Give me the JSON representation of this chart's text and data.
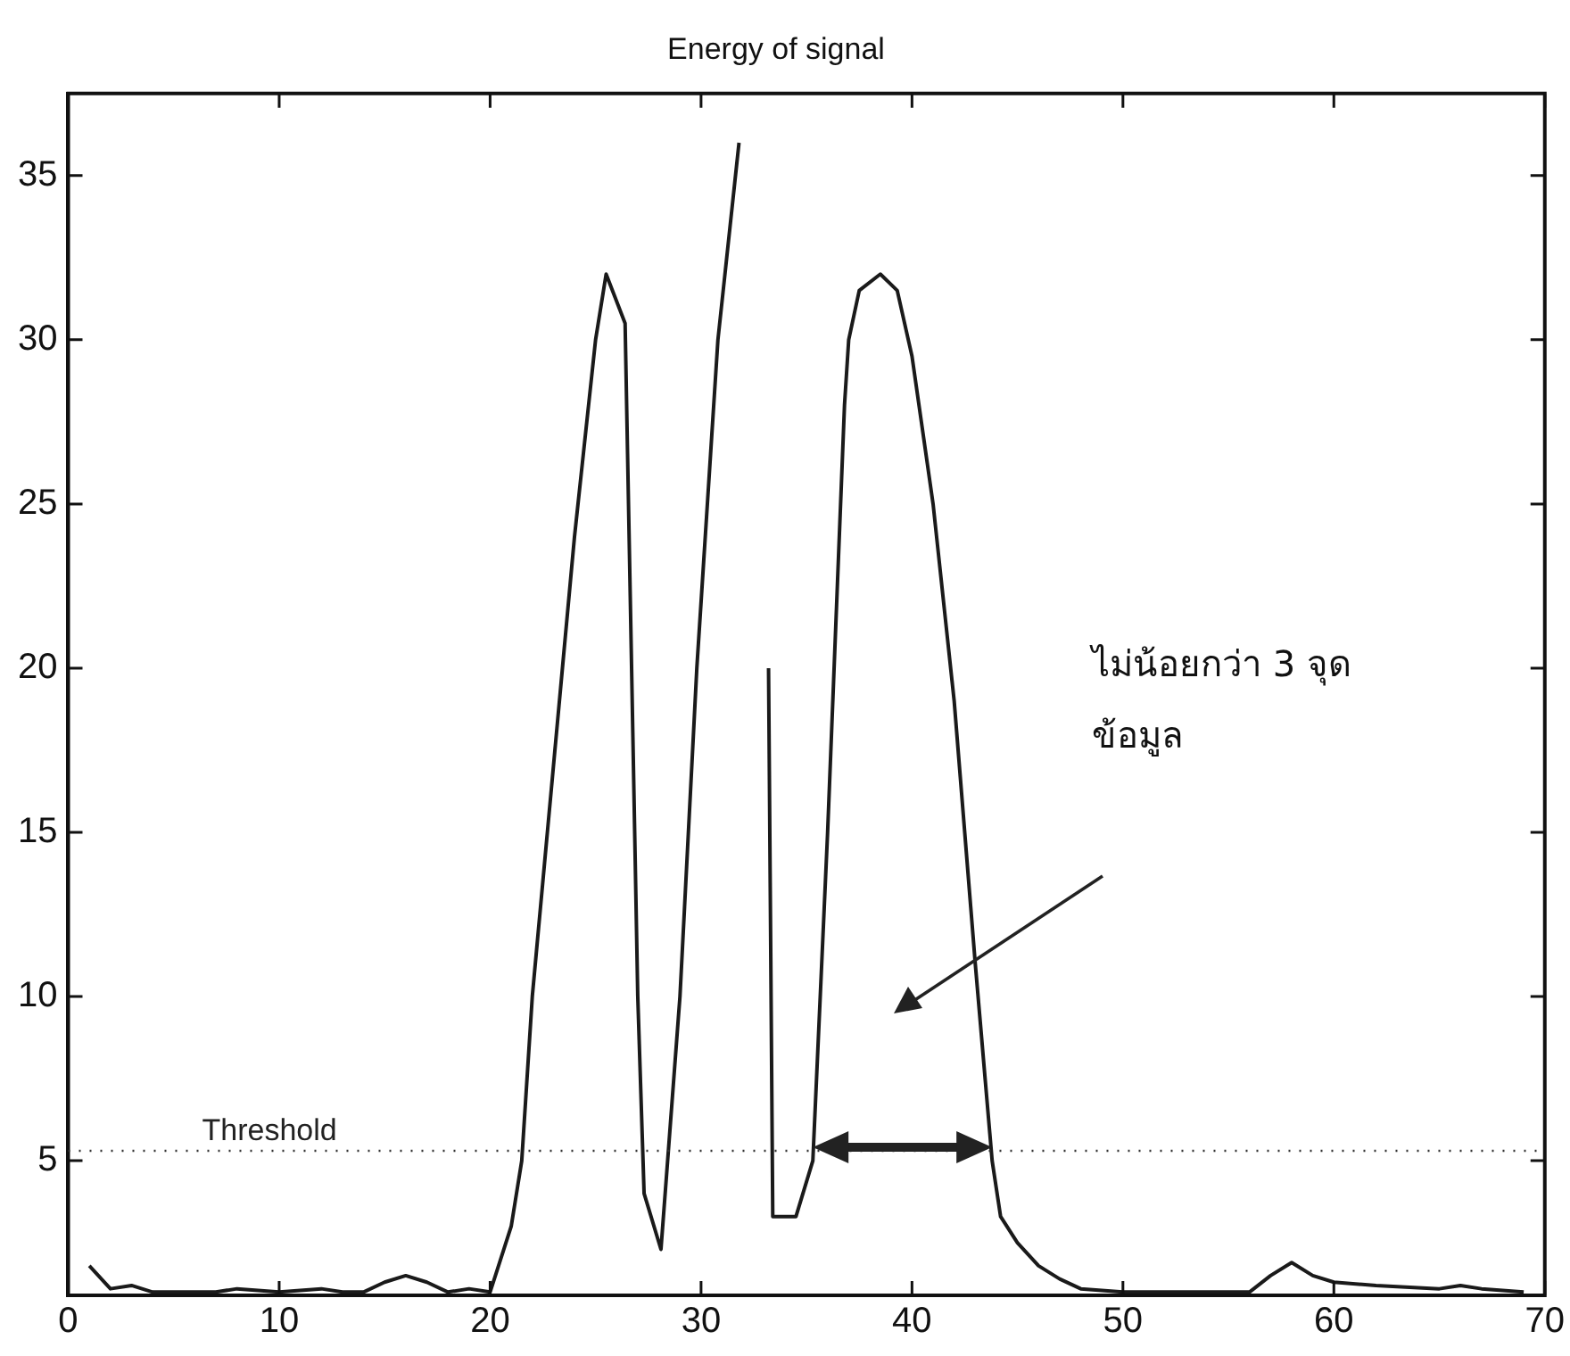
{
  "chart_data": {
    "type": "line",
    "title": "Energy of signal",
    "series": [
      {
        "color": "#1a1a1a",
        "x": [
          1,
          2,
          3,
          4,
          7,
          8,
          10,
          12,
          13,
          14,
          15,
          16,
          17,
          18,
          19,
          20,
          21,
          21.5,
          22,
          23,
          24,
          25,
          25.5,
          26.4,
          27,
          27.3,
          28.1,
          29,
          29.8,
          30.8,
          31.8,
          32.4,
          33,
          33.2,
          33.4,
          34.5,
          35.3,
          36,
          36.8,
          37,
          37.5,
          38.5,
          39.3,
          40,
          41,
          42,
          43,
          43.8,
          44.2,
          45,
          46,
          47,
          48,
          50,
          56,
          57,
          58,
          59,
          60,
          62,
          65,
          66,
          67,
          69
        ],
        "values": [
          1.8,
          1.1,
          1.2,
          1.0,
          1.0,
          1.1,
          1.0,
          1.1,
          1.0,
          1.0,
          1.3,
          1.5,
          1.3,
          1.0,
          1.1,
          1.0,
          3.0,
          5,
          10,
          17,
          24,
          30,
          32,
          30.5,
          10,
          4,
          2.3,
          10,
          20,
          30,
          36,
          null,
          null,
          20,
          3.3,
          3.3,
          5,
          15,
          28,
          30,
          31.5,
          32,
          31.5,
          29.5,
          25,
          19,
          11,
          5,
          3.3,
          2.5,
          1.8,
          1.4,
          1.1,
          1.0,
          1.0,
          1.5,
          1.9,
          1.5,
          1.3,
          1.2,
          1.1,
          1.2,
          1.1,
          1.0
        ]
      }
    ],
    "xlim": [
      0,
      70
    ],
    "xticks": [
      0,
      10,
      20,
      30,
      40,
      50,
      60,
      70
    ],
    "ylim": [
      0.9,
      37.5
    ],
    "yticks": [
      5,
      10,
      15,
      20,
      25,
      30,
      35
    ],
    "ref_lines": [
      {
        "axis": "y",
        "value": 5.3,
        "label": "Threshold",
        "color": "#333333",
        "line_style": "dotted"
      }
    ],
    "annotations": [
      "ไม่น้อยกว่า 3 จุด ข้อมูล"
    ],
    "grid": false,
    "legend": false,
    "marker": "none",
    "line_style": "solid"
  }
}
